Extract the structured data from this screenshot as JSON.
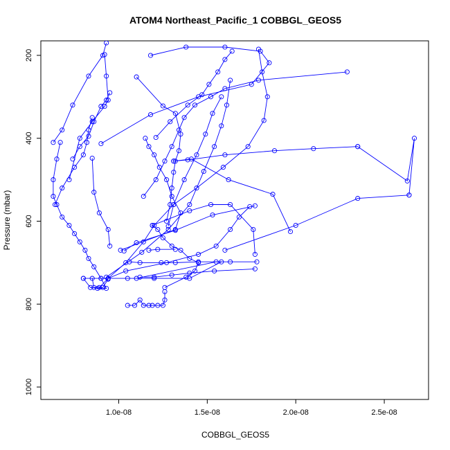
{
  "chart_data": {
    "type": "line",
    "title": "ATOM4 Northeast_Pacific_1 COBBGL_GEOS5",
    "xlabel": "COBBGL_GEOS5",
    "ylabel": "Pressure (mbar)",
    "xlim": [
      5.6e-09,
      2.75e-08
    ],
    "ylim": [
      1030,
      165
    ],
    "y_inverted": true,
    "x_ticks": [
      1e-08,
      1.5e-08,
      2e-08,
      2.5e-08
    ],
    "x_tick_labels": [
      "1.0e-08",
      "1.5e-08",
      "2.0e-08",
      "2.5e-08"
    ],
    "y_ticks": [
      200,
      400,
      600,
      800,
      1000
    ],
    "y_tick_labels": [
      "200",
      "400",
      "600",
      "800",
      "1000"
    ],
    "grid": false,
    "legend": "none",
    "line_color": "#0000ff",
    "marker": "open-circle",
    "series": [
      {
        "x": [
          1.05e-08,
          1.09e-08,
          1.12e-08,
          1.14e-08,
          1.17e-08,
          1.19e-08,
          1.22e-08,
          1.25e-08,
          1.26e-08,
          1.26e-08
        ],
        "y": [
          803,
          803,
          790,
          803,
          803,
          803,
          803,
          803,
          790,
          770
        ]
      },
      {
        "x": [
          1.26e-08,
          1.38e-08,
          1.43e-08,
          1.45e-08,
          1.4e-08,
          1.35e-08,
          1.3e-08,
          1.25e-08,
          1.22e-08,
          1.19e-08
        ],
        "y": [
          760,
          735,
          720,
          700,
          690,
          670,
          660,
          640,
          620,
          610
        ]
      },
      {
        "x": [
          1.01e-08,
          1.32e-08,
          1.35e-08,
          1.3e-08,
          1.27e-08,
          1.23e-08,
          1.2e-08,
          1.17e-08,
          1.15e-08
        ],
        "y": [
          670,
          620,
          580,
          540,
          500,
          470,
          440,
          420,
          400
        ]
      },
      {
        "x": [
          8e-09,
          8.4e-09,
          8.8e-09,
          9.3e-09,
          9e-09,
          8.6e-09,
          8.3e-09,
          8.1e-09,
          7.8e-09,
          7.5e-09,
          7.2e-09,
          6.8e-09,
          6.5e-09,
          6.3e-09,
          6.3e-09,
          6.5e-09,
          6.7e-09
        ],
        "y": [
          738,
          760,
          762,
          762,
          738,
          710,
          690,
          670,
          650,
          630,
          610,
          590,
          560,
          540,
          500,
          450,
          410
        ]
      },
      {
        "x": [
          8e-09,
          1.1e-08,
          1.55e-08,
          1.58e-08,
          1.4e-08,
          1.2e-08,
          1.05e-08,
          9e-09,
          8.5e-09,
          8.6e-09,
          9.1e-09,
          9.4e-09
        ],
        "y": [
          738,
          738,
          698,
          698,
          738,
          738,
          738,
          738,
          738,
          760,
          760,
          740
        ]
      },
      {
        "x": [
          7.4e-09,
          7.8e-09,
          8.3e-09,
          8.6e-09,
          9e-09,
          9.3e-09,
          9.5e-09
        ],
        "y": [
          450,
          420,
          395,
          360,
          323,
          308,
          290
        ]
      },
      {
        "x": [
          7.2e-09,
          7.8e-09,
          8.5e-09,
          9.2e-09,
          9.4e-09,
          9.3e-09,
          9.2e-09
        ],
        "y": [
          500,
          400,
          360,
          323,
          308,
          250,
          198
        ]
      },
      {
        "x": [
          6.3e-09,
          6.8e-09,
          7.4e-09,
          8.3e-09,
          9.1e-09,
          9.3e-09
        ],
        "y": [
          410,
          380,
          320,
          250,
          200,
          170
        ]
      },
      {
        "x": [
          6.4e-09,
          6.8e-09,
          7.5e-09,
          8e-09,
          8.2e-09,
          8.3e-09,
          8.5e-09
        ],
        "y": [
          560,
          520,
          470,
          440,
          410,
          380,
          350
        ]
      },
      {
        "x": [
          8.5e-09,
          8.6e-09,
          8.9e-09,
          9.4e-09,
          9.5e-09
        ],
        "y": [
          448,
          530,
          580,
          620,
          660
        ]
      },
      {
        "x": [
          1.1e-08,
          1.25e-08,
          1.32e-08,
          1.35e-08,
          1.34e-08,
          1.32e-08,
          1.31e-08,
          1.3e-08,
          1.29e-08,
          1.27e-08
        ],
        "y": [
          252,
          322,
          340,
          390,
          430,
          455,
          482,
          520,
          560,
          600
        ]
      },
      {
        "x": [
          8.9e-09,
          9.4e-09,
          1.04e-08,
          1.27e-08,
          1.45e-08,
          1.55e-08,
          1.63e-08,
          1.68e-08,
          1.74e-08
        ],
        "y": [
          760,
          738,
          720,
          700,
          680,
          660,
          620,
          590,
          565
        ]
      },
      {
        "x": [
          9.3e-09,
          1.13e-08,
          1.28e-08,
          1.4e-08,
          1.48e-08,
          1.54e-08,
          1.58e-08,
          1.61e-08,
          1.63e-08
        ],
        "y": [
          735,
          675,
          620,
          560,
          480,
          420,
          370,
          320,
          260
        ]
      },
      {
        "x": [
          9.4e-09,
          1.04e-08,
          1.14e-08,
          1.2e-08,
          1.31e-08,
          1.44e-08,
          1.59e-08,
          1.73e-08,
          1.82e-08,
          1.84e-08,
          1.81e-08,
          1.79e-08
        ],
        "y": [
          738,
          700,
          650,
          610,
          560,
          520,
          470,
          420,
          357,
          300,
          240,
          185
        ]
      },
      {
        "x": [
          9e-09,
          1.18e-08,
          1.45e-08,
          1.75e-08,
          1.85e-08,
          1.8e-08,
          1.6e-08,
          1.38e-08,
          1.18e-08
        ],
        "y": [
          413,
          343,
          300,
          270,
          218,
          190,
          180,
          180,
          200
        ]
      },
      {
        "x": [
          1.21e-08,
          1.29e-08,
          1.39e-08,
          1.47e-08,
          1.51e-08,
          1.56e-08,
          1.6e-08,
          1.64e-08
        ],
        "y": [
          398,
          360,
          320,
          295,
          270,
          240,
          210,
          190
        ]
      },
      {
        "x": [
          1.28e-08,
          1.31e-08,
          1.37e-08,
          1.44e-08,
          1.49e-08,
          1.53e-08,
          1.58e-08
        ],
        "y": [
          612,
          560,
          500,
          440,
          390,
          340,
          300
        ]
      },
      {
        "x": [
          1.14e-08,
          1.21e-08,
          1.26e-08,
          1.3e-08,
          1.34e-08,
          1.37e-08,
          1.43e-08,
          1.52e-08,
          1.6e-08,
          1.79e-08,
          2.29e-08
        ],
        "y": [
          540,
          500,
          455,
          420,
          380,
          350,
          320,
          300,
          280,
          260,
          240
        ]
      },
      {
        "x": [
          1.31e-08,
          1.39e-08,
          1.6e-08,
          1.88e-08,
          2.1e-08,
          2.35e-08
        ],
        "y": [
          455,
          452,
          440,
          430,
          425,
          420
        ]
      },
      {
        "x": [
          1.31e-08,
          1.41e-08,
          1.62e-08,
          1.87e-08,
          1.97e-08
        ],
        "y": [
          455,
          450,
          500,
          535,
          625
        ]
      },
      {
        "x": [
          2.35e-08,
          2.63e-08,
          2.67e-08,
          2.64e-08
        ],
        "y": [
          420,
          503,
          400,
          537
        ]
      },
      {
        "x": [
          1.6e-08,
          2e-08,
          2.35e-08,
          2.64e-08
        ],
        "y": [
          670,
          610,
          545,
          537
        ]
      },
      {
        "x": [
          1.19e-08,
          1.4e-08,
          1.52e-08,
          1.63e-08,
          1.76e-08,
          1.77e-08
        ],
        "y": [
          610,
          575,
          560,
          560,
          620,
          680
        ]
      },
      {
        "x": [
          1.03e-08,
          1.1e-08,
          1.32e-08,
          1.53e-08,
          1.77e-08
        ],
        "y": [
          672,
          652,
          622,
          585,
          563
        ]
      },
      {
        "x": [
          1.06e-08,
          1.12e-08,
          1.24e-08,
          1.32e-08,
          1.45e-08,
          1.63e-08,
          1.78e-08
        ],
        "y": [
          698,
          700,
          700,
          700,
          698,
          698,
          698
        ]
      },
      {
        "x": [
          1.12e-08,
          1.2e-08,
          1.3e-08,
          1.4e-08,
          1.54e-08,
          1.77e-08
        ],
        "y": [
          735,
          735,
          730,
          725,
          720,
          715
        ]
      },
      {
        "x": [
          1.17e-08,
          1.22e-08,
          1.32e-08
        ],
        "y": [
          670,
          668,
          668
        ]
      }
    ]
  }
}
